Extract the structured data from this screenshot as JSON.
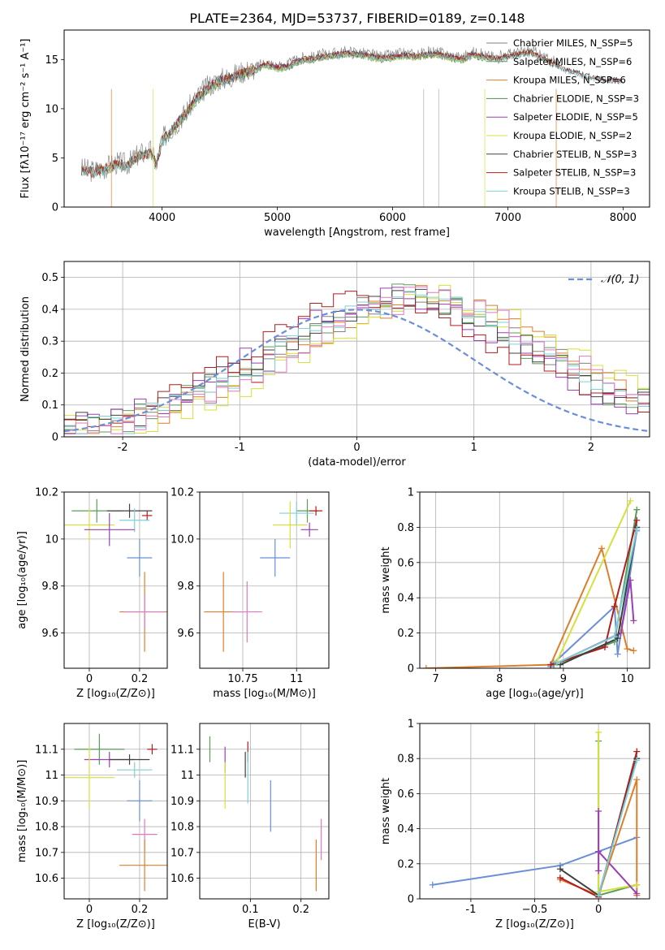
{
  "figure": {
    "title": "PLATE=2364, MJD=53737, FIBERID=0189, z=0.148"
  },
  "chart_data": [
    {
      "id": "spectrum",
      "type": "line",
      "xlabel": "wavelength [Angstrom, rest frame]",
      "ylabel": "Flux [fλ10⁻¹⁷ erg cm⁻² s⁻¹ A⁻¹]",
      "xlim": [
        3150,
        8230
      ],
      "ylim": [
        0,
        18
      ],
      "xticks": [
        4000,
        5000,
        6000,
        7000,
        8000
      ],
      "yticks": [
        0,
        5,
        10,
        15
      ],
      "grid": false,
      "legend_position": "top-right",
      "data_x": [
        3290,
        3400,
        3500,
        3600,
        3700,
        3800,
        3900,
        3950,
        4000,
        4100,
        4200,
        4300,
        4400,
        4500,
        4600,
        4700,
        4800,
        4900,
        5000,
        5100,
        5200,
        5300,
        5400,
        5500,
        5600,
        5700,
        5800,
        5900,
        6000,
        6100,
        6200,
        6300,
        6400,
        6500,
        6600,
        6700,
        6800,
        6900,
        7000,
        7100,
        7200,
        7300,
        7400,
        7500,
        7600,
        7700,
        7800,
        7900,
        8000
      ],
      "data_y": [
        3.7,
        3.5,
        3.8,
        4.3,
        4.2,
        5.2,
        5.5,
        4.2,
        6.7,
        8.0,
        9.4,
        11.0,
        12.1,
        12.8,
        13.1,
        13.6,
        13.9,
        14.5,
        14.1,
        14.3,
        14.9,
        15.0,
        15.3,
        15.4,
        15.6,
        15.5,
        15.3,
        15.1,
        15.2,
        15.4,
        15.3,
        15.5,
        15.5,
        15.2,
        15.0,
        15.5,
        15.2,
        15.0,
        15.3,
        15.5,
        15.7,
        15.1,
        14.5,
        13.9,
        13.6,
        13.2,
        12.9,
        12.8,
        12.8
      ],
      "series": [
        {
          "name": "Chabrier MILES, N_SSP=5",
          "color": "#808080",
          "x_range": [
            3300,
            7450
          ],
          "dx": 0,
          "dy": 0.2
        },
        {
          "name": "Salpeter MILES, N_SSP=6",
          "color": "#5a9e5a",
          "x_range": [
            3300,
            7450
          ],
          "dx": 14,
          "dy": -0.05
        },
        {
          "name": "Kroupa MILES, N_SSP=6",
          "color": "#dd7f2a",
          "x_range": [
            3300,
            7450
          ],
          "dx": 25,
          "dy": 0.1
        },
        {
          "name": "Chabrier ELODIE, N_SSP=3",
          "color": "#4f8f4f",
          "x_range": [
            4000,
            6800
          ],
          "dx": 38,
          "dy": -0.15
        },
        {
          "name": "Salpeter ELODIE, N_SSP=5",
          "color": "#9b3fb5",
          "x_range": [
            4000,
            6800
          ],
          "dx": 50,
          "dy": 0.05
        },
        {
          "name": "Kroupa ELODIE, N_SSP=2",
          "color": "#d6e03a",
          "x_range": [
            4000,
            6800
          ],
          "dx": 63,
          "dy": -0.1
        },
        {
          "name": "Chabrier STELIB, N_SSP=3",
          "color": "#404040",
          "x_range": [
            3300,
            8000
          ],
          "dx": 76,
          "dy": 0.15
        },
        {
          "name": "Salpeter STELIB, N_SSP=3",
          "color": "#b21d1d",
          "x_range": [
            3300,
            8000
          ],
          "dx": 88,
          "dy": 0.0
        },
        {
          "name": "Kroupa STELIB, N_SSP=3",
          "color": "#7fd0d6",
          "x_range": [
            3300,
            8000
          ],
          "dx": 100,
          "dy": -0.08
        }
      ]
    },
    {
      "id": "residuals",
      "type": "histogram",
      "xlabel": "(data-model)/error",
      "ylabel": "Normed distribution",
      "xlim": [
        -2.5,
        2.5
      ],
      "ylim": [
        0,
        0.55
      ],
      "xticks": [
        -2,
        -1,
        0,
        1,
        2
      ],
      "yticks": [
        0.0,
        0.1,
        0.2,
        0.3,
        0.4,
        0.5
      ],
      "grid": true,
      "legend_position": "top-right",
      "reference_curve": {
        "name": "𝒩(0, 1)",
        "color": "#6a8fd8",
        "mean": 0,
        "sigma": 1
      },
      "bin_width": 0.1,
      "bin_start": -2.5,
      "base_profile": [
        0.03,
        0.03,
        0.04,
        0.04,
        0.05,
        0.05,
        0.06,
        0.07,
        0.08,
        0.1,
        0.11,
        0.13,
        0.14,
        0.16,
        0.18,
        0.2,
        0.22,
        0.24,
        0.26,
        0.28,
        0.3,
        0.32,
        0.34,
        0.36,
        0.38,
        0.4,
        0.41,
        0.42,
        0.43,
        0.44,
        0.44,
        0.43,
        0.42,
        0.41,
        0.4,
        0.38,
        0.36,
        0.34,
        0.32,
        0.3,
        0.28,
        0.26,
        0.24,
        0.22,
        0.2,
        0.18,
        0.16,
        0.14,
        0.13,
        0.11
      ],
      "series": [
        {
          "color": "#808080",
          "shift": 0,
          "seed": 1
        },
        {
          "color": "#5a9e5a",
          "shift": 1,
          "seed": 2
        },
        {
          "color": "#dd7f2a",
          "shift": -1,
          "seed": 3
        },
        {
          "color": "#9b3fb5",
          "shift": 2,
          "seed": 4
        },
        {
          "color": "#d6e03a",
          "shift": -2,
          "seed": 5
        },
        {
          "color": "#404040",
          "shift": 1,
          "seed": 6
        },
        {
          "color": "#b21d1d",
          "shift": 3,
          "seed": 7
        },
        {
          "color": "#7fd0d6",
          "shift": 0,
          "seed": 8
        },
        {
          "color": "#e377c2",
          "shift": -1,
          "seed": 9
        }
      ]
    },
    {
      "id": "age-vs-Z",
      "type": "scatter",
      "xlabel": "Z [log₁₀(Z/Z⊙)]",
      "ylabel": "age  [log₁₀(age/yr)]",
      "xlim": [
        -0.1,
        0.31
      ],
      "ylim": [
        9.45,
        10.2
      ],
      "xticks": [
        0.0,
        0.2
      ],
      "yticks": [
        9.6,
        9.8,
        10.0,
        10.2
      ],
      "grid": true,
      "points": [
        {
          "x": 0.03,
          "y": 10.12,
          "xerr": 0.1,
          "yerr": 0.05,
          "color": "#5a9e5a"
        },
        {
          "x": 0.16,
          "y": 10.12,
          "xerr": 0.09,
          "yerr": 0.03,
          "color": "#404040"
        },
        {
          "x": 0.23,
          "y": 10.1,
          "xerr": 0.02,
          "yerr": 0.02,
          "color": "#b21d1d"
        },
        {
          "x": 0.18,
          "y": 10.08,
          "xerr": 0.06,
          "yerr": 0.05,
          "color": "#7fd0d6"
        },
        {
          "x": 0.0,
          "y": 10.06,
          "xerr": 0.1,
          "yerr": 0.07,
          "color": "#d6e03a"
        },
        {
          "x": 0.08,
          "y": 10.04,
          "xerr": 0.1,
          "yerr": 0.07,
          "color": "#9b3fb5"
        },
        {
          "x": 0.2,
          "y": 9.92,
          "xerr": 0.05,
          "yerr": 0.08,
          "color": "#6a8fd8"
        },
        {
          "x": 0.22,
          "y": 9.69,
          "xerr": 0.1,
          "yerr": 0.17,
          "color": "#dd7f2a"
        },
        {
          "x": 0.22,
          "y": 9.69,
          "xerr": 0.08,
          "yerr": 0.07,
          "color": "#e377c2"
        }
      ]
    },
    {
      "id": "age-vs-mass",
      "type": "scatter",
      "xlabel": "mass [log₁₀(M/M⊙)]",
      "ylabel": "",
      "xlim": [
        10.55,
        11.15
      ],
      "ylim": [
        9.45,
        10.2
      ],
      "xticks": [
        10.75,
        11.0
      ],
      "ytick_labels": [
        "9.6",
        "9.8",
        "10.0",
        "10.2"
      ],
      "yticks": [
        9.6,
        9.8,
        10.0,
        10.2
      ],
      "grid": true,
      "points": [
        {
          "x": 11.05,
          "y": 10.12,
          "xerr": 0.05,
          "yerr": 0.05,
          "color": "#5a9e5a"
        },
        {
          "x": 11.09,
          "y": 10.12,
          "xerr": 0.03,
          "yerr": 0.02,
          "color": "#b21d1d"
        },
        {
          "x": 11.0,
          "y": 10.11,
          "xerr": 0.08,
          "yerr": 0.05,
          "color": "#7fd0d6"
        },
        {
          "x": 11.06,
          "y": 10.04,
          "xerr": 0.04,
          "yerr": 0.03,
          "color": "#9b3fb5"
        },
        {
          "x": 10.97,
          "y": 10.06,
          "xerr": 0.08,
          "yerr": 0.1,
          "color": "#d6e03a"
        },
        {
          "x": 10.9,
          "y": 9.92,
          "xerr": 0.07,
          "yerr": 0.08,
          "color": "#6a8fd8"
        },
        {
          "x": 10.66,
          "y": 9.69,
          "xerr": 0.09,
          "yerr": 0.17,
          "color": "#dd7f2a"
        },
        {
          "x": 10.77,
          "y": 9.69,
          "xerr": 0.07,
          "yerr": 0.13,
          "color": "#e377c2"
        }
      ]
    },
    {
      "id": "weight-vs-age",
      "type": "line",
      "xlabel": "age  [log₁₀(age/yr)]",
      "ylabel": "mass weight",
      "xlim": [
        6.75,
        10.35
      ],
      "ylim": [
        0,
        1.0
      ],
      "xticks": [
        7,
        8,
        9,
        10
      ],
      "yticks": [
        0.0,
        0.2,
        0.4,
        0.6,
        0.8,
        1.0
      ],
      "grid": true,
      "series": [
        {
          "color": "#dd7f2a",
          "x": [
            6.85,
            8.8,
            9.6,
            10.0,
            10.1
          ],
          "y": [
            0.0,
            0.02,
            0.68,
            0.11,
            0.1
          ]
        },
        {
          "color": "#6a8fd8",
          "x": [
            8.8,
            8.85,
            9.8,
            9.85,
            10.15
          ],
          "y": [
            0.01,
            0.03,
            0.35,
            0.08,
            0.78
          ]
        },
        {
          "color": "#5a9e5a",
          "x": [
            8.85,
            9.8,
            10.15
          ],
          "y": [
            0.02,
            0.15,
            0.9
          ]
        },
        {
          "color": "#b21d1d",
          "x": [
            8.8,
            9.65,
            9.8,
            10.15
          ],
          "y": [
            0.02,
            0.12,
            0.35,
            0.84
          ]
        },
        {
          "color": "#9b3fb5",
          "x": [
            8.9,
            9.9,
            10.05,
            10.1
          ],
          "y": [
            0.03,
            0.2,
            0.5,
            0.27
          ]
        },
        {
          "color": "#d6e03a",
          "x": [
            8.9,
            10.05
          ],
          "y": [
            0.04,
            0.95
          ]
        },
        {
          "color": "#404040",
          "x": [
            8.95,
            9.85,
            10.15
          ],
          "y": [
            0.02,
            0.17,
            0.8
          ]
        },
        {
          "color": "#7fd0d6",
          "x": [
            8.9,
            9.8,
            10.15
          ],
          "y": [
            0.03,
            0.18,
            0.79
          ]
        }
      ]
    },
    {
      "id": "mass-vs-Z",
      "type": "scatter",
      "xlabel": "Z [log₁₀(Z/Z⊙)]",
      "ylabel": "mass [log₁₀(M/M⊙)]",
      "xlim": [
        -0.1,
        0.31
      ],
      "ylim": [
        10.52,
        11.2
      ],
      "xticks": [
        0.0,
        0.2
      ],
      "yticks": [
        10.6,
        10.7,
        10.8,
        10.9,
        11.0,
        11.1
      ],
      "grid": true,
      "points": [
        {
          "x": 0.04,
          "y": 11.1,
          "xerr": 0.1,
          "yerr": 0.06,
          "color": "#5a9e5a"
        },
        {
          "x": 0.25,
          "y": 11.1,
          "xerr": 0.02,
          "yerr": 0.02,
          "color": "#b21d1d"
        },
        {
          "x": 0.08,
          "y": 11.06,
          "xerr": 0.1,
          "yerr": 0.03,
          "color": "#9b3fb5"
        },
        {
          "x": 0.16,
          "y": 11.06,
          "xerr": 0.08,
          "yerr": 0.02,
          "color": "#404040"
        },
        {
          "x": 0.18,
          "y": 11.02,
          "xerr": 0.07,
          "yerr": 0.03,
          "color": "#7fd0d6"
        },
        {
          "x": 0.0,
          "y": 10.99,
          "xerr": 0.1,
          "yerr": 0.12,
          "color": "#d6e03a"
        },
        {
          "x": 0.2,
          "y": 10.9,
          "xerr": 0.05,
          "yerr": 0.08,
          "color": "#6a8fd8"
        },
        {
          "x": 0.22,
          "y": 10.77,
          "xerr": 0.05,
          "yerr": 0.06,
          "color": "#e377c2"
        },
        {
          "x": 0.22,
          "y": 10.65,
          "xerr": 0.1,
          "yerr": 0.1,
          "color": "#dd7f2a"
        }
      ]
    },
    {
      "id": "mass-vs-EBV",
      "type": "scatter",
      "xlabel": "E(B-V)",
      "ylabel": "",
      "xlim": [
        0.0,
        0.255
      ],
      "ylim": [
        10.52,
        11.2
      ],
      "xticks": [
        0.1,
        0.2
      ],
      "yticks": [
        10.6,
        10.7,
        10.8,
        10.9,
        11.0,
        11.1
      ],
      "grid": true,
      "points": [
        {
          "x": 0.02,
          "y": 11.1,
          "xerr": 0,
          "yerr": 0.05,
          "color": "#5a9e5a"
        },
        {
          "x": 0.095,
          "y": 11.09,
          "xerr": 0,
          "yerr": 0.04,
          "color": "#b21d1d"
        },
        {
          "x": 0.05,
          "y": 11.06,
          "xerr": 0,
          "yerr": 0.05,
          "color": "#9b3fb5"
        },
        {
          "x": 0.09,
          "y": 11.04,
          "xerr": 0,
          "yerr": 0.05,
          "color": "#404040"
        },
        {
          "x": 0.095,
          "y": 10.99,
          "xerr": 0,
          "yerr": 0.1,
          "color": "#7fd0d6"
        },
        {
          "x": 0.05,
          "y": 10.96,
          "xerr": 0,
          "yerr": 0.09,
          "color": "#d6e03a"
        },
        {
          "x": 0.14,
          "y": 10.88,
          "xerr": 0,
          "yerr": 0.1,
          "color": "#6a8fd8"
        },
        {
          "x": 0.24,
          "y": 10.75,
          "xerr": 0,
          "yerr": 0.08,
          "color": "#e377c2"
        },
        {
          "x": 0.23,
          "y": 10.65,
          "xerr": 0,
          "yerr": 0.1,
          "color": "#dd7f2a"
        }
      ]
    },
    {
      "id": "weight-vs-Z",
      "type": "line",
      "xlabel": "Z [log₁₀(Z/Z⊙)]",
      "ylabel": "mass weight",
      "xlim": [
        -1.4,
        0.4
      ],
      "ylim": [
        0,
        1.0
      ],
      "xticks": [
        -1.0,
        -0.5,
        0.0
      ],
      "yticks": [
        0.0,
        0.2,
        0.4,
        0.6,
        0.8,
        1.0
      ],
      "grid": true,
      "series": [
        {
          "color": "#6a8fd8",
          "x": [
            -1.3,
            -0.3,
            0.0,
            0.3
          ],
          "y": [
            0.08,
            0.19,
            0.27,
            0.35
          ]
        },
        {
          "color": "#dd7f2a",
          "x": [
            -0.3,
            0.0,
            0.3,
            0.3
          ],
          "y": [
            0.11,
            0.02,
            0.68,
            0.02
          ]
        },
        {
          "color": "#b21d1d",
          "x": [
            -0.3,
            0.0,
            0.3
          ],
          "y": [
            0.12,
            0.01,
            0.84
          ]
        },
        {
          "color": "#404040",
          "x": [
            -0.3,
            0.0,
            0.3
          ],
          "y": [
            0.17,
            0.02,
            0.8
          ]
        },
        {
          "color": "#5a9e5a",
          "x": [
            0.0,
            0.0,
            0.3
          ],
          "y": [
            0.9,
            0.02,
            0.08
          ]
        },
        {
          "color": "#d6e03a",
          "x": [
            0.0,
            0.0,
            0.3
          ],
          "y": [
            0.95,
            0.04,
            0.08
          ]
        },
        {
          "color": "#9b3fb5",
          "x": [
            0.0,
            0.0,
            0.0,
            0.3
          ],
          "y": [
            0.5,
            0.16,
            0.27,
            0.03
          ]
        },
        {
          "color": "#7fd0d6",
          "x": [
            0.0,
            0.3
          ],
          "y": [
            0.02,
            0.79
          ]
        }
      ]
    }
  ]
}
